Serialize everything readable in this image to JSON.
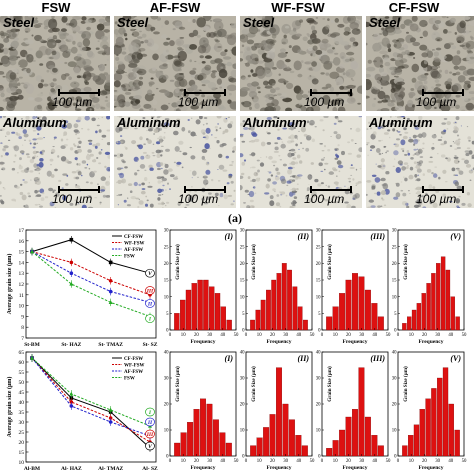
{
  "columns": [
    "FSW",
    "AF-FSW",
    "WF-FSW",
    "CF-FSW"
  ],
  "row_labels": {
    "steel": "Steel",
    "aluminum": "Aluminum"
  },
  "scale_bar": "100 µm",
  "panel_label_a": "(a)",
  "left_edge_labels": [
    "",
    ""
  ],
  "chart_data": [
    {
      "type": "line",
      "title": "",
      "ylabel": "Average grain size (µm)",
      "xlabel": "",
      "categories": [
        "St-BM",
        "St- HAZ",
        "St- TMAZ",
        "St- SZ"
      ],
      "ylim": [
        7,
        17
      ],
      "yticks": [
        7,
        8,
        9,
        10,
        11,
        12,
        13,
        14,
        15,
        16,
        17
      ],
      "legend": [
        "CF-FSW",
        "WF-FSW",
        "AF-FSW",
        "FSW"
      ],
      "series": [
        {
          "name": "CF-FSW",
          "color": "#000000",
          "dash": "solid",
          "values": [
            15,
            16.1,
            14,
            13
          ]
        },
        {
          "name": "WF-FSW",
          "color": "#cc0000",
          "dash": "dashed",
          "values": [
            15,
            14,
            12.3,
            11
          ]
        },
        {
          "name": "AF-FSW",
          "color": "#2222cc",
          "dash": "dashed",
          "values": [
            15,
            13,
            11.3,
            10.3
          ]
        },
        {
          "name": "FSW",
          "color": "#22aa22",
          "dash": "dashed",
          "values": [
            15,
            12,
            10.3,
            9
          ]
        }
      ],
      "end_labels": [
        {
          "text": "V",
          "color": "#000000",
          "y": 13
        },
        {
          "text": "III",
          "color": "#cc0000",
          "y": 11.4
        },
        {
          "text": "II",
          "color": "#2222cc",
          "y": 10.2
        },
        {
          "text": "I",
          "color": "#22aa22",
          "y": 8.8
        }
      ]
    },
    {
      "type": "line",
      "title": "",
      "ylabel": "Average grain size (µm)",
      "xlabel": "",
      "categories": [
        "Al-BM",
        "Al- HAZ",
        "Al- TMAZ",
        "Al- SZ"
      ],
      "ylim": [
        10,
        65
      ],
      "yticks": [
        10,
        15,
        20,
        25,
        30,
        35,
        40,
        45,
        50,
        55,
        60,
        65
      ],
      "legend": [
        "CF-FSW",
        "WF-FSW",
        "AF-FSW",
        "FSW"
      ],
      "series": [
        {
          "name": "CF-FSW",
          "color": "#000000",
          "dash": "solid",
          "values": [
            62,
            42,
            35,
            17
          ]
        },
        {
          "name": "WF-FSW",
          "color": "#cc0000",
          "dash": "dashed",
          "values": [
            62,
            40,
            32,
            20
          ]
        },
        {
          "name": "AF-FSW",
          "color": "#2222cc",
          "dash": "dashed",
          "values": [
            62,
            38,
            30,
            23
          ]
        },
        {
          "name": "FSW",
          "color": "#22aa22",
          "dash": "dashed",
          "values": [
            62,
            44,
            36,
            28
          ]
        }
      ],
      "end_labels": [
        {
          "text": "I",
          "color": "#22aa22",
          "y": 35
        },
        {
          "text": "II",
          "color": "#2222cc",
          "y": 30
        },
        {
          "text": "III",
          "color": "#cc0000",
          "y": 24
        },
        {
          "text": "V",
          "color": "#000000",
          "y": 18
        }
      ]
    },
    {
      "type": "bar",
      "panel": "I",
      "row": "steel",
      "xlabel": "Frequency",
      "ylabel": "Grain Size (µm)",
      "xlim": [
        0,
        50
      ],
      "ylim": [
        0,
        30
      ],
      "xticks": [
        0,
        10,
        20,
        30,
        40,
        50
      ],
      "yticks": [
        0,
        5,
        10,
        15,
        20,
        25,
        30
      ],
      "values": [
        5,
        9,
        12,
        14,
        15,
        15,
        13,
        11,
        7,
        3
      ]
    },
    {
      "type": "bar",
      "panel": "II",
      "row": "steel",
      "xlabel": "Frequency",
      "ylabel": "Grain Size (µm)",
      "xlim": [
        0,
        50
      ],
      "ylim": [
        0,
        30
      ],
      "xticks": [
        0,
        10,
        20,
        30,
        40,
        50
      ],
      "yticks": [
        0,
        5,
        10,
        15,
        20,
        25,
        30
      ],
      "values": [
        3,
        6,
        9,
        12,
        15,
        17,
        20,
        18,
        13,
        7,
        3
      ]
    },
    {
      "type": "bar",
      "panel": "III",
      "row": "steel",
      "xlabel": "Frequency",
      "ylabel": "Grain Size (µm)",
      "xlim": [
        0,
        50
      ],
      "ylim": [
        0,
        30
      ],
      "xticks": [
        0,
        10,
        20,
        30,
        40,
        50
      ],
      "yticks": [
        0,
        5,
        10,
        15,
        20,
        25,
        30
      ],
      "values": [
        4,
        7,
        11,
        15,
        17,
        16,
        12,
        8,
        4
      ]
    },
    {
      "type": "bar",
      "panel": "V",
      "row": "steel",
      "xlabel": "Frequency",
      "ylabel": "Grain Size (µm)",
      "xlim": [
        0,
        50
      ],
      "ylim": [
        0,
        30
      ],
      "xticks": [
        0,
        10,
        20,
        30,
        40,
        50
      ],
      "yticks": [
        0,
        5,
        10,
        15,
        20,
        25,
        30
      ],
      "values": [
        2,
        4,
        6,
        8,
        11,
        14,
        17,
        20,
        22,
        18,
        10,
        4
      ]
    },
    {
      "type": "bar",
      "panel": "I",
      "row": "aluminum",
      "xlabel": "Frequency",
      "ylabel": "Grain Size (µm)",
      "xlim": [
        0,
        50
      ],
      "ylim": [
        0,
        40
      ],
      "xticks": [
        0,
        10,
        20,
        30,
        40,
        50
      ],
      "yticks": [
        0,
        10,
        20,
        30,
        40
      ],
      "values": [
        5,
        9,
        13,
        18,
        22,
        20,
        14,
        9,
        5
      ]
    },
    {
      "type": "bar",
      "panel": "II",
      "row": "aluminum",
      "xlabel": "Frequency",
      "ylabel": "Grain Size (µm)",
      "xlim": [
        0,
        50
      ],
      "ylim": [
        0,
        40
      ],
      "xticks": [
        0,
        10,
        20,
        30,
        40,
        50
      ],
      "yticks": [
        0,
        10,
        20,
        30,
        40
      ],
      "values": [
        4,
        7,
        11,
        16,
        34,
        20,
        14,
        8,
        4
      ]
    },
    {
      "type": "bar",
      "panel": "III",
      "row": "aluminum",
      "xlabel": "Frequency",
      "ylabel": "Grain Size (µm)",
      "xlim": [
        0,
        50
      ],
      "ylim": [
        0,
        40
      ],
      "xticks": [
        0,
        10,
        20,
        30,
        40,
        50
      ],
      "yticks": [
        0,
        10,
        20,
        30,
        40
      ],
      "values": [
        3,
        6,
        10,
        15,
        18,
        34,
        15,
        8,
        4
      ]
    },
    {
      "type": "bar",
      "panel": "V",
      "row": "aluminum",
      "xlabel": "Frequency",
      "ylabel": "Grain Size (µm)",
      "xlim": [
        0,
        50
      ],
      "ylim": [
        0,
        40
      ],
      "xticks": [
        0,
        10,
        20,
        30,
        40,
        50
      ],
      "yticks": [
        0,
        10,
        20,
        30,
        40
      ],
      "values": [
        4,
        8,
        12,
        18,
        22,
        26,
        30,
        34,
        20,
        10
      ]
    }
  ]
}
